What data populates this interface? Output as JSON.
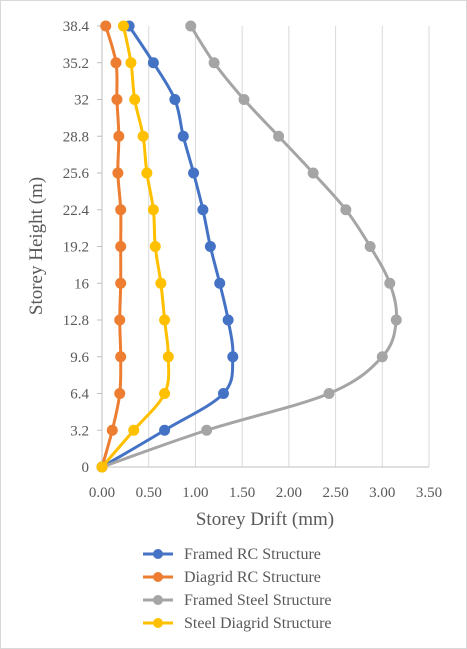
{
  "chart_data": {
    "type": "line",
    "xlabel": "Storey Drift (mm)",
    "ylabel": "Storey Height (m)",
    "xlim": [
      0,
      3.5
    ],
    "ylim": [
      0,
      38.4
    ],
    "x_ticks": [
      "0.00",
      "0.50",
      "1.00",
      "1.50",
      "2.00",
      "2.50",
      "3.00",
      "3.50"
    ],
    "y_ticks": [
      "0",
      "3.2",
      "6.4",
      "9.6",
      "12.8",
      "16",
      "19.2",
      "22.4",
      "25.6",
      "28.8",
      "32",
      "35.2",
      "38.4"
    ],
    "grid": "vertical",
    "legend_position": "bottom",
    "series": [
      {
        "name": "Framed RC Structure",
        "color": "#4472C4",
        "points": [
          [
            0.0,
            0
          ],
          [
            0.67,
            3.2
          ],
          [
            1.3,
            6.4
          ],
          [
            1.4,
            9.6
          ],
          [
            1.35,
            12.8
          ],
          [
            1.26,
            16
          ],
          [
            1.16,
            19.2
          ],
          [
            1.08,
            22.4
          ],
          [
            0.98,
            25.6
          ],
          [
            0.87,
            28.8
          ],
          [
            0.78,
            32
          ],
          [
            0.55,
            35.2
          ],
          [
            0.29,
            38.4
          ]
        ]
      },
      {
        "name": "Diagrid RC Structure",
        "color": "#ED7D31",
        "points": [
          [
            0.0,
            0
          ],
          [
            0.11,
            3.2
          ],
          [
            0.19,
            6.4
          ],
          [
            0.2,
            9.6
          ],
          [
            0.19,
            12.8
          ],
          [
            0.2,
            16
          ],
          [
            0.2,
            19.2
          ],
          [
            0.2,
            22.4
          ],
          [
            0.17,
            25.6
          ],
          [
            0.18,
            28.8
          ],
          [
            0.16,
            32
          ],
          [
            0.15,
            35.2
          ],
          [
            0.04,
            38.4
          ]
        ]
      },
      {
        "name": "Framed Steel Structure",
        "color": "#A5A5A5",
        "points": [
          [
            0.0,
            0
          ],
          [
            1.12,
            3.2
          ],
          [
            2.43,
            6.4
          ],
          [
            3.0,
            9.6
          ],
          [
            3.15,
            12.8
          ],
          [
            3.08,
            16
          ],
          [
            2.87,
            19.2
          ],
          [
            2.61,
            22.4
          ],
          [
            2.26,
            25.6
          ],
          [
            1.89,
            28.8
          ],
          [
            1.52,
            32
          ],
          [
            1.2,
            35.2
          ],
          [
            0.95,
            38.4
          ]
        ]
      },
      {
        "name": "Steel Diagrid Structure",
        "color": "#FFC000",
        "points": [
          [
            0.0,
            0
          ],
          [
            0.34,
            3.2
          ],
          [
            0.67,
            6.4
          ],
          [
            0.71,
            9.6
          ],
          [
            0.67,
            12.8
          ],
          [
            0.63,
            16
          ],
          [
            0.57,
            19.2
          ],
          [
            0.55,
            22.4
          ],
          [
            0.48,
            25.6
          ],
          [
            0.44,
            28.8
          ],
          [
            0.35,
            32
          ],
          [
            0.31,
            35.2
          ],
          [
            0.23,
            38.4
          ]
        ]
      }
    ]
  }
}
